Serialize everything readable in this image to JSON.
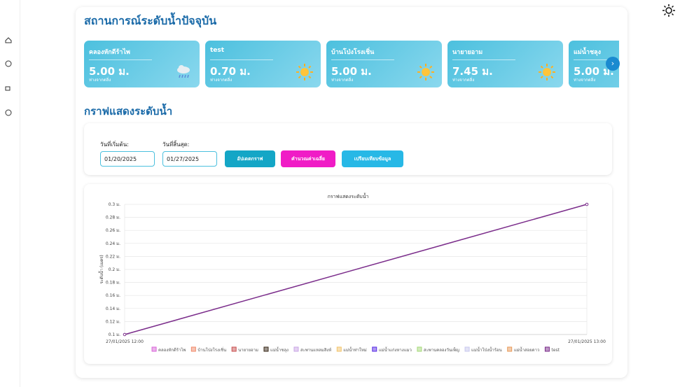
{
  "header": {
    "title": "สถานการณ์ระดับน้ำปัจจุบัน"
  },
  "cards": [
    {
      "name": "คลองหักดีร้าไพ",
      "level": "5.00 ม.",
      "note": "ห่างจากตลิ่ง",
      "icon": "rain"
    },
    {
      "name": "test",
      "level": "0.70 ม.",
      "note": "ห่างจากตลิ่ง",
      "icon": "sun"
    },
    {
      "name": "บ้านโป่งโรงเชิ่น",
      "level": "5.00 ม.",
      "note": "ห่างจากตลิ่ง",
      "icon": "sun"
    },
    {
      "name": "นายายอาม",
      "level": "7.45 ม.",
      "note": "ห่างจากตลิ่ง",
      "icon": "sun"
    },
    {
      "name": "แม่น้ำชลุง",
      "level": "5.00 ม.",
      "note": "ห่างจากตลิ่ง",
      "icon": "sun"
    }
  ],
  "graph_section": {
    "title": "กราฟแสดงระดับน้ำ",
    "start_label": "วันที่เริ่มต้น:",
    "start_date": "01/20/2025",
    "end_label": "วันที่สิ้นสุด:",
    "end_date": "01/27/2025",
    "buttons": [
      "อัปเดตกราฟ",
      "คำนวณค่าเฉลี่ย",
      "เปรียบเทียบข้อมูล"
    ]
  },
  "chart_data": {
    "type": "line",
    "title": "กราฟแสดงระดับน้ำ",
    "y_label": "ระดับน้ำ (เมตร)",
    "x": [
      "27/01/2025 12:00",
      "27/01/2025 13:00"
    ],
    "ylim": [
      0.1,
      0.3
    ],
    "yticks": [
      {
        "value": 0.1,
        "label": "0.1 ม."
      },
      {
        "value": 0.12,
        "label": "0.12 ม."
      },
      {
        "value": 0.14,
        "label": "0.14 ม."
      },
      {
        "value": 0.16,
        "label": "0.16 ม."
      },
      {
        "value": 0.18,
        "label": "0.18 ม."
      },
      {
        "value": 0.2,
        "label": "0.2 ม."
      },
      {
        "value": 0.22,
        "label": "0.22 ม."
      },
      {
        "value": 0.24,
        "label": "0.24 ม."
      },
      {
        "value": 0.26,
        "label": "0.26 ม."
      },
      {
        "value": 0.28,
        "label": "0.28 ม."
      },
      {
        "value": 0.3,
        "label": "0.3 ม."
      }
    ],
    "grid": true,
    "series": [
      {
        "name": "คลองหักดีร้าไพ",
        "color": "#d866d8",
        "values": [
          null,
          null
        ]
      },
      {
        "name": "บ้านโป่งโรงเชิ่น",
        "color": "#f08a6a",
        "values": [
          null,
          null
        ]
      },
      {
        "name": "นายายอาม",
        "color": "#c85050",
        "values": [
          null,
          null
        ]
      },
      {
        "name": "แม่น้ำชลุง",
        "color": "#3a2a1a",
        "values": [
          null,
          null
        ]
      },
      {
        "name": "สะพานแหลมสิงห์",
        "color": "#c9a6e6",
        "values": [
          null,
          null
        ]
      },
      {
        "name": "แม่น้ำท่าใหม่",
        "color": "#f2c36b",
        "values": [
          null,
          null
        ]
      },
      {
        "name": "แม่น้ำแก่งหางแมว",
        "color": "#5a2ee6",
        "values": [
          null,
          null
        ]
      },
      {
        "name": "สะพานคลองวันเพ็ญ",
        "color": "#a6d97a",
        "values": [
          null,
          null
        ]
      },
      {
        "name": "แม่น้ำโป่งน้ำร้อน",
        "color": "#c8c8ee",
        "values": [
          null,
          null
        ]
      },
      {
        "name": "แม่น้ำสอยดาว",
        "color": "#e89a5a",
        "values": [
          null,
          null
        ]
      },
      {
        "name": "test",
        "color": "#7b2d8b",
        "values": [
          0.1,
          0.3
        ]
      }
    ]
  }
}
